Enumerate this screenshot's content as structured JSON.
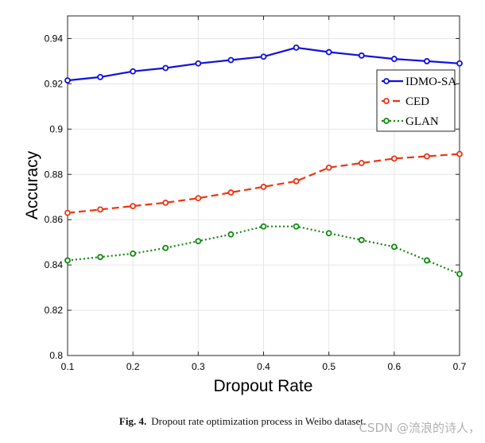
{
  "chart_data": {
    "type": "line",
    "title": "",
    "xlabel": "Dropout Rate",
    "ylabel": "Accuracy",
    "x": [
      0.1,
      0.15,
      0.2,
      0.25,
      0.3,
      0.35,
      0.4,
      0.45,
      0.5,
      0.55,
      0.6,
      0.65,
      0.7
    ],
    "xlim": [
      0.1,
      0.7
    ],
    "ylim": [
      0.8,
      0.95
    ],
    "xticks": [
      "0.1",
      "0.2",
      "0.3",
      "0.4",
      "0.5",
      "0.6",
      "0.7"
    ],
    "xtick_values": [
      0.1,
      0.2,
      0.3,
      0.4,
      0.5,
      0.6,
      0.7
    ],
    "yticks": [
      "0.8",
      "0.82",
      "0.84",
      "0.86",
      "0.88",
      "0.9",
      "0.92",
      "0.94"
    ],
    "ytick_values": [
      0.8,
      0.82,
      0.84,
      0.86,
      0.88,
      0.9,
      0.92,
      0.94
    ],
    "grid": true,
    "legend_position": "top-right",
    "series": [
      {
        "name": "IDMO-SA",
        "color": "#1010dd",
        "dash": "solid",
        "values": [
          0.9215,
          0.923,
          0.9255,
          0.927,
          0.929,
          0.9305,
          0.932,
          0.936,
          0.934,
          0.9325,
          0.931,
          0.93,
          0.929
        ]
      },
      {
        "name": "CED",
        "color": "#ee3311",
        "dash": "dashed",
        "values": [
          0.863,
          0.8645,
          0.866,
          0.8675,
          0.8695,
          0.872,
          0.8745,
          0.877,
          0.883,
          0.885,
          0.887,
          0.888,
          0.889
        ]
      },
      {
        "name": "GLAN",
        "color": "#118811",
        "dash": "dotted",
        "values": [
          0.842,
          0.8435,
          0.845,
          0.8475,
          0.8505,
          0.8535,
          0.857,
          0.857,
          0.854,
          0.851,
          0.848,
          0.842,
          0.836
        ]
      }
    ]
  },
  "caption": {
    "label": "Fig. 4.",
    "text": "Dropout rate optimization process in Weibo dataset."
  },
  "watermark": "CSDN @流浪的诗人，"
}
